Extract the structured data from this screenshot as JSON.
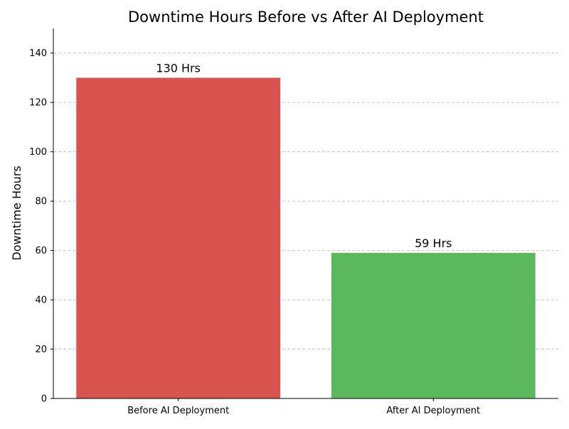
{
  "chart_data": {
    "type": "bar",
    "title": "Downtime Hours Before vs After AI Deployment",
    "xlabel": "",
    "ylabel": "Downtime Hours",
    "categories": [
      "Before AI Deployment",
      "After AI Deployment"
    ],
    "values": [
      130,
      59
    ],
    "data_labels": [
      "130 Hrs",
      "59 Hrs"
    ],
    "colors": [
      "#d9534f",
      "#5cb85c"
    ],
    "ylim": [
      0,
      150
    ],
    "yticks": [
      0,
      20,
      40,
      60,
      80,
      100,
      120,
      140
    ],
    "grid": "y-dashed",
    "legend": "none"
  }
}
